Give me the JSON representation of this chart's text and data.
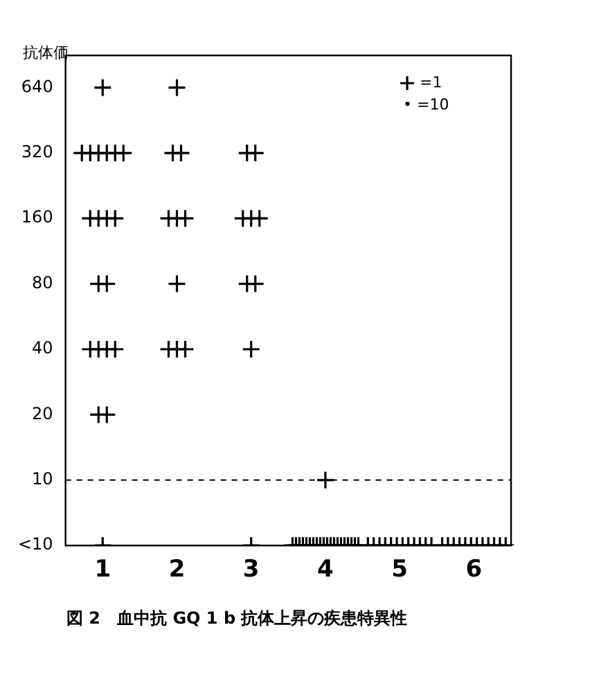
{
  "chart_data": {
    "type": "scatter",
    "title": "図 2　血中抗 GQ 1 b 抗体上昇の疾患特異性",
    "ylabel": "抗体価",
    "categories": [
      "1",
      "2",
      "3",
      "4",
      "5",
      "6"
    ],
    "ylim": [
      5,
      900
    ],
    "yticks": [
      {
        "value": 5,
        "label": "<10"
      },
      10,
      20,
      40,
      80,
      160,
      320,
      640
    ],
    "log": "y",
    "grid": false,
    "legend": "top right",
    "annotations": [
      "• =10"
    ],
    "ref_lines": [
      {
        "axis": "y",
        "value": 10,
        "label": null,
        "color": "#000000",
        "line_style": "dashed"
      }
    ],
    "series": [
      {
        "name": "=1",
        "color": "#000000",
        "marker": "cross",
        "x": [
          "1",
          "1",
          "1",
          "1",
          "1",
          "1",
          "1",
          "1",
          "1",
          "1",
          "1",
          "1",
          "1",
          "1",
          "1",
          "1",
          "1",
          "1",
          "1",
          "1",
          "2",
          "2",
          "2",
          "2",
          "2",
          "2",
          "2",
          "2",
          "2",
          "2",
          "3",
          "3",
          "3",
          "3",
          "3",
          "3",
          "3",
          "3",
          "3",
          "4",
          "4",
          "4",
          "4",
          "4",
          "4",
          "4",
          "4",
          "4",
          "4",
          "4",
          "4",
          "4",
          "4",
          "4",
          "4",
          "4",
          "4",
          "4",
          "4",
          "4",
          "5",
          "5",
          "5",
          "5",
          "5",
          "5",
          "5",
          "5",
          "5",
          "5",
          "5",
          "5",
          "6",
          "6",
          "6",
          "6",
          "6",
          "6",
          "6",
          "6",
          "6",
          "6",
          "6",
          "6"
        ],
        "values": [
          640,
          320,
          320,
          320,
          320,
          320,
          320,
          160,
          160,
          160,
          160,
          80,
          80,
          40,
          40,
          40,
          40,
          20,
          20,
          5,
          640,
          320,
          320,
          160,
          160,
          160,
          80,
          40,
          40,
          40,
          320,
          320,
          160,
          160,
          160,
          80,
          80,
          40,
          5,
          10,
          5,
          5,
          5,
          5,
          5,
          5,
          5,
          5,
          5,
          5,
          5,
          5,
          5,
          5,
          5,
          5,
          5,
          5,
          5,
          5,
          5,
          5,
          5,
          5,
          5,
          5,
          5,
          5,
          5,
          5,
          5,
          5,
          5,
          5,
          5,
          5,
          5,
          5,
          5,
          5,
          5,
          5,
          5,
          5
        ]
      }
    ]
  }
}
